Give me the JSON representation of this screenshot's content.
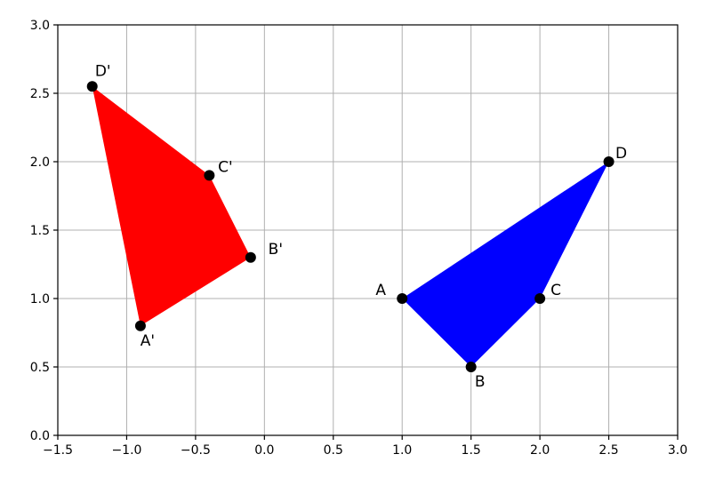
{
  "chart_data": {
    "type": "scatter",
    "title": "",
    "xlabel": "",
    "ylabel": "",
    "xlim": [
      -1.5,
      3.0
    ],
    "ylim": [
      0.0,
      3.0
    ],
    "grid": true,
    "x_ticks": [
      "−1.5",
      "−1.0",
      "−0.5",
      "0.0",
      "0.5",
      "1.0",
      "1.5",
      "2.0",
      "2.5",
      "3.0"
    ],
    "x_tick_values": [
      -1.5,
      -1.0,
      -0.5,
      0.0,
      0.5,
      1.0,
      1.5,
      2.0,
      2.5,
      3.0
    ],
    "y_ticks": [
      "0.0",
      "0.5",
      "1.0",
      "1.5",
      "2.0",
      "2.5",
      "3.0"
    ],
    "y_tick_values": [
      0.0,
      0.5,
      1.0,
      1.5,
      2.0,
      2.5,
      3.0
    ],
    "polygons": [
      {
        "color": "#0000ff",
        "points": [
          {
            "label": "A",
            "x": 1.0,
            "y": 1.0
          },
          {
            "label": "B",
            "x": 1.5,
            "y": 0.5
          },
          {
            "label": "C",
            "x": 2.0,
            "y": 1.0
          },
          {
            "label": "D",
            "x": 2.5,
            "y": 2.0
          }
        ]
      },
      {
        "color": "#ff0000",
        "points": [
          {
            "label": "A'",
            "x": -0.9,
            "y": 0.8
          },
          {
            "label": "B'",
            "x": -0.1,
            "y": 1.3
          },
          {
            "label": "C'",
            "x": -0.4,
            "y": 1.9
          },
          {
            "label": "D'",
            "x": -1.25,
            "y": 2.55
          }
        ]
      }
    ],
    "marker_color": "#000000"
  }
}
